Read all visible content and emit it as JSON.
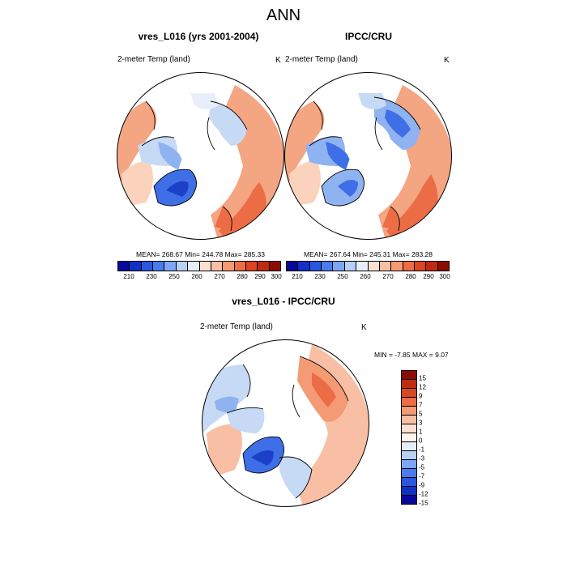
{
  "main_title": "ANN",
  "panels": [
    {
      "title": "vres_L016 (yrs 2001-2004)",
      "field": "2-meter Temp (land)",
      "unit": "K",
      "stats": "MEAN= 268.67  Min= 244.78  Max= 285.33"
    },
    {
      "title": "IPCC/CRU",
      "field": "2-meter Temp (land)",
      "unit": "K",
      "stats": "MEAN= 267.64  Min= 245.31  Max= 283.28"
    }
  ],
  "diff_panel": {
    "title": "vres_L016 - IPCC/CRU",
    "field": "2-meter Temp (land)",
    "unit": "K",
    "stats": "MIN =  -7.85 MAX =   9.07"
  },
  "abs_colorbar": {
    "labels": [
      "210",
      "230",
      "250",
      "260",
      "270",
      "280",
      "290",
      "300"
    ],
    "colors": [
      "#08089a",
      "#1030c8",
      "#2a56e0",
      "#4a7cf0",
      "#7ea6f5",
      "#b8d0f5",
      "#e6eef8",
      "#fbe0d2",
      "#f8bfa4",
      "#f49a74",
      "#ec6c46",
      "#dc4422",
      "#c02a10",
      "#8c0c04"
    ]
  },
  "diff_colorbar": {
    "labels": [
      "15",
      "12",
      "9",
      "7",
      "5",
      "3",
      "1",
      "0",
      "-1",
      "-3",
      "-5",
      "-7",
      "-9",
      "-12",
      "-15"
    ],
    "colors": [
      "#8c0c04",
      "#c02a10",
      "#dc4422",
      "#ec6c46",
      "#f49a74",
      "#f8bfa4",
      "#fbe0d2",
      "#fef4ee",
      "#e6eef8",
      "#b8d0f5",
      "#7ea6f5",
      "#4a7cf0",
      "#2a56e0",
      "#1030c8",
      "#08089a"
    ]
  },
  "map_colors": {
    "warm_outer": "#f4a582",
    "warm_mid": "#fbd3bd",
    "warm_strong": "#ec6c46",
    "neutral": "#f3f4f8",
    "cool_light": "#c6daf5",
    "cool_mid": "#8fb3f0",
    "cool_strong": "#3e6fe6",
    "cool_deep": "#1c40c8"
  },
  "map_projection": "north-polar-stereographic"
}
